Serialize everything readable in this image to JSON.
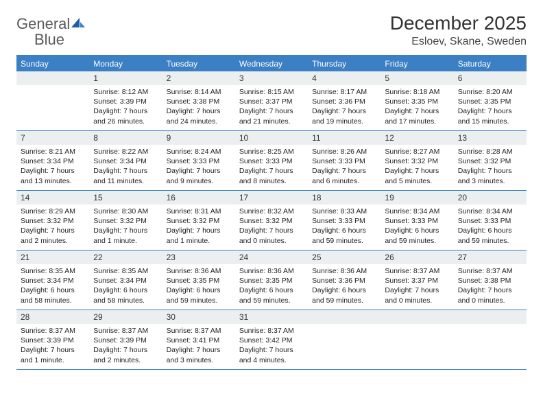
{
  "logo": {
    "word1": "General",
    "word2": "Blue"
  },
  "title": "December 2025",
  "location": "Esloev, Skane, Sweden",
  "colors": {
    "header_bg": "#3b7fc4",
    "header_text": "#ffffff",
    "daynum_bg": "#eceff0",
    "border": "#3b7fc4",
    "text": "#333333",
    "logo_gray": "#5a5a5a",
    "logo_blue": "#3b7fc4"
  },
  "weekdays": [
    "Sunday",
    "Monday",
    "Tuesday",
    "Wednesday",
    "Thursday",
    "Friday",
    "Saturday"
  ],
  "weeks": [
    [
      {
        "day": "",
        "sunrise": "",
        "sunset": "",
        "daylight": ""
      },
      {
        "day": "1",
        "sunrise": "Sunrise: 8:12 AM",
        "sunset": "Sunset: 3:39 PM",
        "daylight": "Daylight: 7 hours and 26 minutes."
      },
      {
        "day": "2",
        "sunrise": "Sunrise: 8:14 AM",
        "sunset": "Sunset: 3:38 PM",
        "daylight": "Daylight: 7 hours and 24 minutes."
      },
      {
        "day": "3",
        "sunrise": "Sunrise: 8:15 AM",
        "sunset": "Sunset: 3:37 PM",
        "daylight": "Daylight: 7 hours and 21 minutes."
      },
      {
        "day": "4",
        "sunrise": "Sunrise: 8:17 AM",
        "sunset": "Sunset: 3:36 PM",
        "daylight": "Daylight: 7 hours and 19 minutes."
      },
      {
        "day": "5",
        "sunrise": "Sunrise: 8:18 AM",
        "sunset": "Sunset: 3:35 PM",
        "daylight": "Daylight: 7 hours and 17 minutes."
      },
      {
        "day": "6",
        "sunrise": "Sunrise: 8:20 AM",
        "sunset": "Sunset: 3:35 PM",
        "daylight": "Daylight: 7 hours and 15 minutes."
      }
    ],
    [
      {
        "day": "7",
        "sunrise": "Sunrise: 8:21 AM",
        "sunset": "Sunset: 3:34 PM",
        "daylight": "Daylight: 7 hours and 13 minutes."
      },
      {
        "day": "8",
        "sunrise": "Sunrise: 8:22 AM",
        "sunset": "Sunset: 3:34 PM",
        "daylight": "Daylight: 7 hours and 11 minutes."
      },
      {
        "day": "9",
        "sunrise": "Sunrise: 8:24 AM",
        "sunset": "Sunset: 3:33 PM",
        "daylight": "Daylight: 7 hours and 9 minutes."
      },
      {
        "day": "10",
        "sunrise": "Sunrise: 8:25 AM",
        "sunset": "Sunset: 3:33 PM",
        "daylight": "Daylight: 7 hours and 8 minutes."
      },
      {
        "day": "11",
        "sunrise": "Sunrise: 8:26 AM",
        "sunset": "Sunset: 3:33 PM",
        "daylight": "Daylight: 7 hours and 6 minutes."
      },
      {
        "day": "12",
        "sunrise": "Sunrise: 8:27 AM",
        "sunset": "Sunset: 3:32 PM",
        "daylight": "Daylight: 7 hours and 5 minutes."
      },
      {
        "day": "13",
        "sunrise": "Sunrise: 8:28 AM",
        "sunset": "Sunset: 3:32 PM",
        "daylight": "Daylight: 7 hours and 3 minutes."
      }
    ],
    [
      {
        "day": "14",
        "sunrise": "Sunrise: 8:29 AM",
        "sunset": "Sunset: 3:32 PM",
        "daylight": "Daylight: 7 hours and 2 minutes."
      },
      {
        "day": "15",
        "sunrise": "Sunrise: 8:30 AM",
        "sunset": "Sunset: 3:32 PM",
        "daylight": "Daylight: 7 hours and 1 minute."
      },
      {
        "day": "16",
        "sunrise": "Sunrise: 8:31 AM",
        "sunset": "Sunset: 3:32 PM",
        "daylight": "Daylight: 7 hours and 1 minute."
      },
      {
        "day": "17",
        "sunrise": "Sunrise: 8:32 AM",
        "sunset": "Sunset: 3:32 PM",
        "daylight": "Daylight: 7 hours and 0 minutes."
      },
      {
        "day": "18",
        "sunrise": "Sunrise: 8:33 AM",
        "sunset": "Sunset: 3:33 PM",
        "daylight": "Daylight: 6 hours and 59 minutes."
      },
      {
        "day": "19",
        "sunrise": "Sunrise: 8:34 AM",
        "sunset": "Sunset: 3:33 PM",
        "daylight": "Daylight: 6 hours and 59 minutes."
      },
      {
        "day": "20",
        "sunrise": "Sunrise: 8:34 AM",
        "sunset": "Sunset: 3:33 PM",
        "daylight": "Daylight: 6 hours and 59 minutes."
      }
    ],
    [
      {
        "day": "21",
        "sunrise": "Sunrise: 8:35 AM",
        "sunset": "Sunset: 3:34 PM",
        "daylight": "Daylight: 6 hours and 58 minutes."
      },
      {
        "day": "22",
        "sunrise": "Sunrise: 8:35 AM",
        "sunset": "Sunset: 3:34 PM",
        "daylight": "Daylight: 6 hours and 58 minutes."
      },
      {
        "day": "23",
        "sunrise": "Sunrise: 8:36 AM",
        "sunset": "Sunset: 3:35 PM",
        "daylight": "Daylight: 6 hours and 59 minutes."
      },
      {
        "day": "24",
        "sunrise": "Sunrise: 8:36 AM",
        "sunset": "Sunset: 3:35 PM",
        "daylight": "Daylight: 6 hours and 59 minutes."
      },
      {
        "day": "25",
        "sunrise": "Sunrise: 8:36 AM",
        "sunset": "Sunset: 3:36 PM",
        "daylight": "Daylight: 6 hours and 59 minutes."
      },
      {
        "day": "26",
        "sunrise": "Sunrise: 8:37 AM",
        "sunset": "Sunset: 3:37 PM",
        "daylight": "Daylight: 7 hours and 0 minutes."
      },
      {
        "day": "27",
        "sunrise": "Sunrise: 8:37 AM",
        "sunset": "Sunset: 3:38 PM",
        "daylight": "Daylight: 7 hours and 0 minutes."
      }
    ],
    [
      {
        "day": "28",
        "sunrise": "Sunrise: 8:37 AM",
        "sunset": "Sunset: 3:39 PM",
        "daylight": "Daylight: 7 hours and 1 minute."
      },
      {
        "day": "29",
        "sunrise": "Sunrise: 8:37 AM",
        "sunset": "Sunset: 3:39 PM",
        "daylight": "Daylight: 7 hours and 2 minutes."
      },
      {
        "day": "30",
        "sunrise": "Sunrise: 8:37 AM",
        "sunset": "Sunset: 3:41 PM",
        "daylight": "Daylight: 7 hours and 3 minutes."
      },
      {
        "day": "31",
        "sunrise": "Sunrise: 8:37 AM",
        "sunset": "Sunset: 3:42 PM",
        "daylight": "Daylight: 7 hours and 4 minutes."
      },
      {
        "day": "",
        "sunrise": "",
        "sunset": "",
        "daylight": ""
      },
      {
        "day": "",
        "sunrise": "",
        "sunset": "",
        "daylight": ""
      },
      {
        "day": "",
        "sunrise": "",
        "sunset": "",
        "daylight": ""
      }
    ]
  ]
}
